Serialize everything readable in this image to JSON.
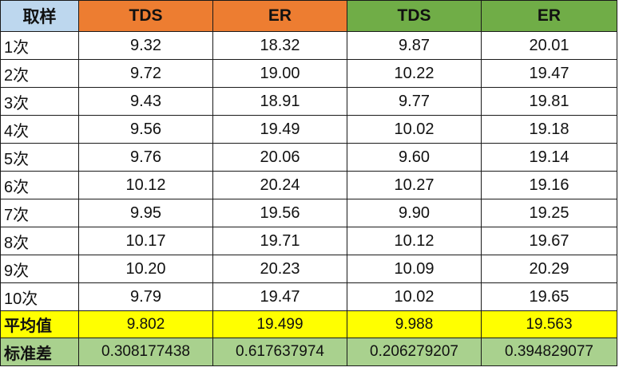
{
  "table": {
    "header": {
      "label": "取样",
      "columns": [
        "TDS",
        "ER",
        "TDS",
        "ER"
      ]
    },
    "colors": {
      "label_header": "#bdd7ee",
      "group1_header": "#ed7d31",
      "group2_header": "#70ad47",
      "average_row": "#ffff00",
      "std_row": "#a9d18e"
    },
    "rows": [
      {
        "label": "1次",
        "values": [
          "9.32",
          "18.32",
          "9.87",
          "20.01"
        ]
      },
      {
        "label": "2次",
        "values": [
          "9.72",
          "19.00",
          "10.22",
          "19.47"
        ]
      },
      {
        "label": "3次",
        "values": [
          "9.43",
          "18.91",
          "9.77",
          "19.81"
        ]
      },
      {
        "label": "4次",
        "values": [
          "9.56",
          "19.49",
          "10.02",
          "19.18"
        ]
      },
      {
        "label": "5次",
        "values": [
          "9.76",
          "20.06",
          "9.60",
          "19.14"
        ]
      },
      {
        "label": "6次",
        "values": [
          "10.12",
          "20.24",
          "10.27",
          "19.16"
        ]
      },
      {
        "label": "7次",
        "values": [
          "9.95",
          "19.56",
          "9.90",
          "19.25"
        ]
      },
      {
        "label": "8次",
        "values": [
          "10.17",
          "19.71",
          "10.12",
          "19.67"
        ]
      },
      {
        "label": "9次",
        "values": [
          "10.20",
          "20.23",
          "10.09",
          "20.29"
        ]
      },
      {
        "label": "10次",
        "values": [
          "9.79",
          "19.47",
          "10.02",
          "19.65"
        ]
      }
    ],
    "average": {
      "label": "平均值",
      "values": [
        "9.802",
        "19.499",
        "9.988",
        "19.563"
      ]
    },
    "std": {
      "label": "标准差",
      "values": [
        "0.308177438",
        "0.617637974",
        "0.206279207",
        "0.394829077"
      ]
    }
  }
}
